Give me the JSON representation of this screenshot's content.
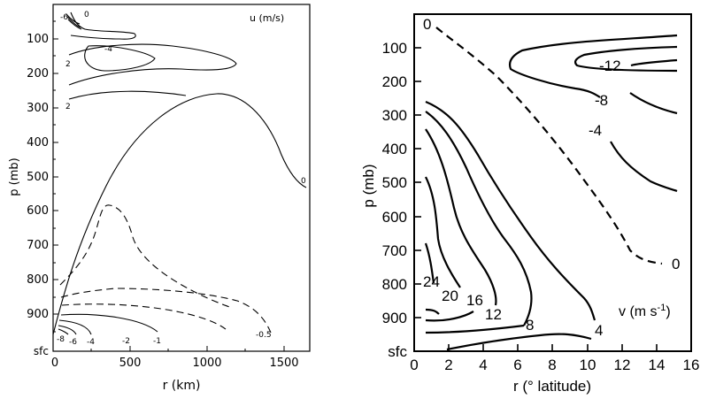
{
  "chart_data": [
    {
      "type": "contour",
      "panel": "left",
      "title": "u (m/s)",
      "xlabel": "r (km)",
      "ylabel": "p (mb)",
      "xlim": [
        0,
        1650
      ],
      "ylim": [
        50,
        1000
      ],
      "x_ticks": [
        "0",
        "500",
        "1000",
        "1500"
      ],
      "y_ticks": [
        "100",
        "200",
        "300",
        "400",
        "500",
        "600",
        "700",
        "800",
        "900",
        "sfc"
      ],
      "contour_labels": [
        "-6",
        "0",
        "-4",
        "2",
        "2",
        "0",
        "-8",
        "-6",
        "-4",
        "-2",
        "-1",
        "-0.5"
      ]
    },
    {
      "type": "contour",
      "panel": "right",
      "title": "v (m s",
      "title_sup": "-1",
      "title_close": ")",
      "xlabel": "r (° latitude)",
      "ylabel": "p (mb)",
      "xlim": [
        0,
        16
      ],
      "ylim": [
        0,
        1000
      ],
      "x_ticks": [
        "0",
        "2",
        "4",
        "6",
        "8",
        "10",
        "12",
        "14",
        "16"
      ],
      "y_ticks": [
        "100",
        "200",
        "300",
        "400",
        "500",
        "600",
        "700",
        "800",
        "900",
        "sfc"
      ],
      "contour_labels": [
        "0",
        "-12",
        "-8",
        "-4",
        "0",
        "24",
        "20",
        "16",
        "12",
        "8",
        "4"
      ]
    }
  ]
}
